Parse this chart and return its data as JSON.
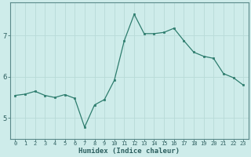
{
  "x": [
    0,
    1,
    2,
    3,
    4,
    5,
    6,
    7,
    8,
    9,
    10,
    11,
    12,
    13,
    14,
    15,
    16,
    17,
    18,
    19,
    20,
    21,
    22,
    23
  ],
  "y": [
    5.55,
    5.58,
    5.65,
    5.55,
    5.5,
    5.57,
    5.48,
    4.78,
    5.32,
    5.45,
    5.92,
    6.88,
    7.52,
    7.05,
    7.05,
    7.08,
    7.18,
    6.88,
    6.6,
    6.5,
    6.45,
    6.08,
    5.98,
    5.8
  ],
  "xlabel": "Humidex (Indice chaleur)",
  "yticks": [
    5,
    6,
    7
  ],
  "xticks": [
    0,
    1,
    2,
    3,
    4,
    5,
    6,
    7,
    8,
    9,
    10,
    11,
    12,
    13,
    14,
    15,
    16,
    17,
    18,
    19,
    20,
    21,
    22,
    23
  ],
  "line_color": "#2e7d6e",
  "marker_color": "#2e7d6e",
  "bg_color": "#ceecea",
  "grid_color": "#b8dbd8",
  "axis_color": "#2e6060",
  "spine_color": "#5a8a8a",
  "ylim": [
    4.5,
    7.8
  ],
  "xlim": [
    -0.5,
    23.5
  ],
  "tick_fontsize": 5.0,
  "xlabel_fontsize": 6.5
}
